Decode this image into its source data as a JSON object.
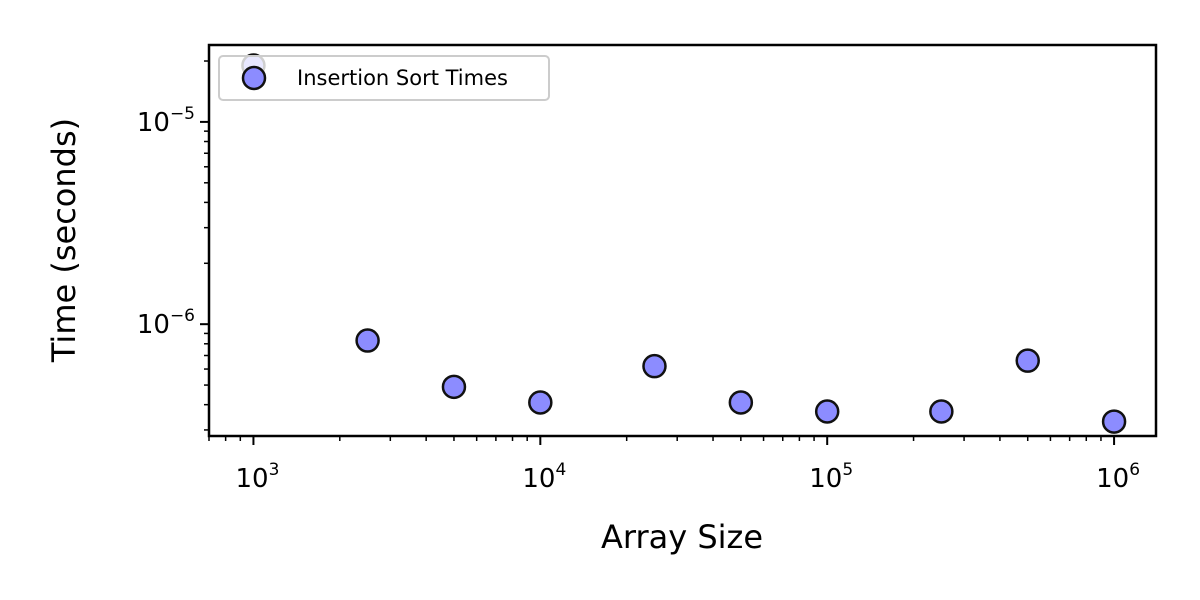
{
  "chart_data": {
    "type": "scatter",
    "title": "",
    "xlabel": "Array Size",
    "ylabel": "Time (seconds)",
    "xscale": "log",
    "yscale": "log",
    "xlim": [
      700,
      1400000
    ],
    "ylim": [
      2.8e-07,
      2.4e-05
    ],
    "grid": false,
    "legend_position": "upper-left",
    "x_ticks": [
      {
        "base": "10",
        "exp": "3",
        "value": 1000
      },
      {
        "base": "10",
        "exp": "4",
        "value": 10000
      },
      {
        "base": "10",
        "exp": "5",
        "value": 100000
      },
      {
        "base": "10",
        "exp": "6",
        "value": 1000000
      }
    ],
    "y_ticks": [
      {
        "base": "10",
        "exp": "−6",
        "value": 1e-06
      },
      {
        "base": "10",
        "exp": "−5",
        "value": 1e-05
      }
    ],
    "series": [
      {
        "name": "Insertion Sort Times",
        "color": "#8c8cff",
        "edge_color": "#111111",
        "x": [
          1000,
          2500,
          5000,
          10000,
          25000,
          50000,
          100000,
          250000,
          500000,
          1000000
        ],
        "y": [
          1.9e-05,
          8.3e-07,
          4.9e-07,
          4.1e-07,
          6.2e-07,
          4.1e-07,
          3.7e-07,
          3.7e-07,
          6.6e-07,
          3.3e-07
        ]
      }
    ]
  }
}
